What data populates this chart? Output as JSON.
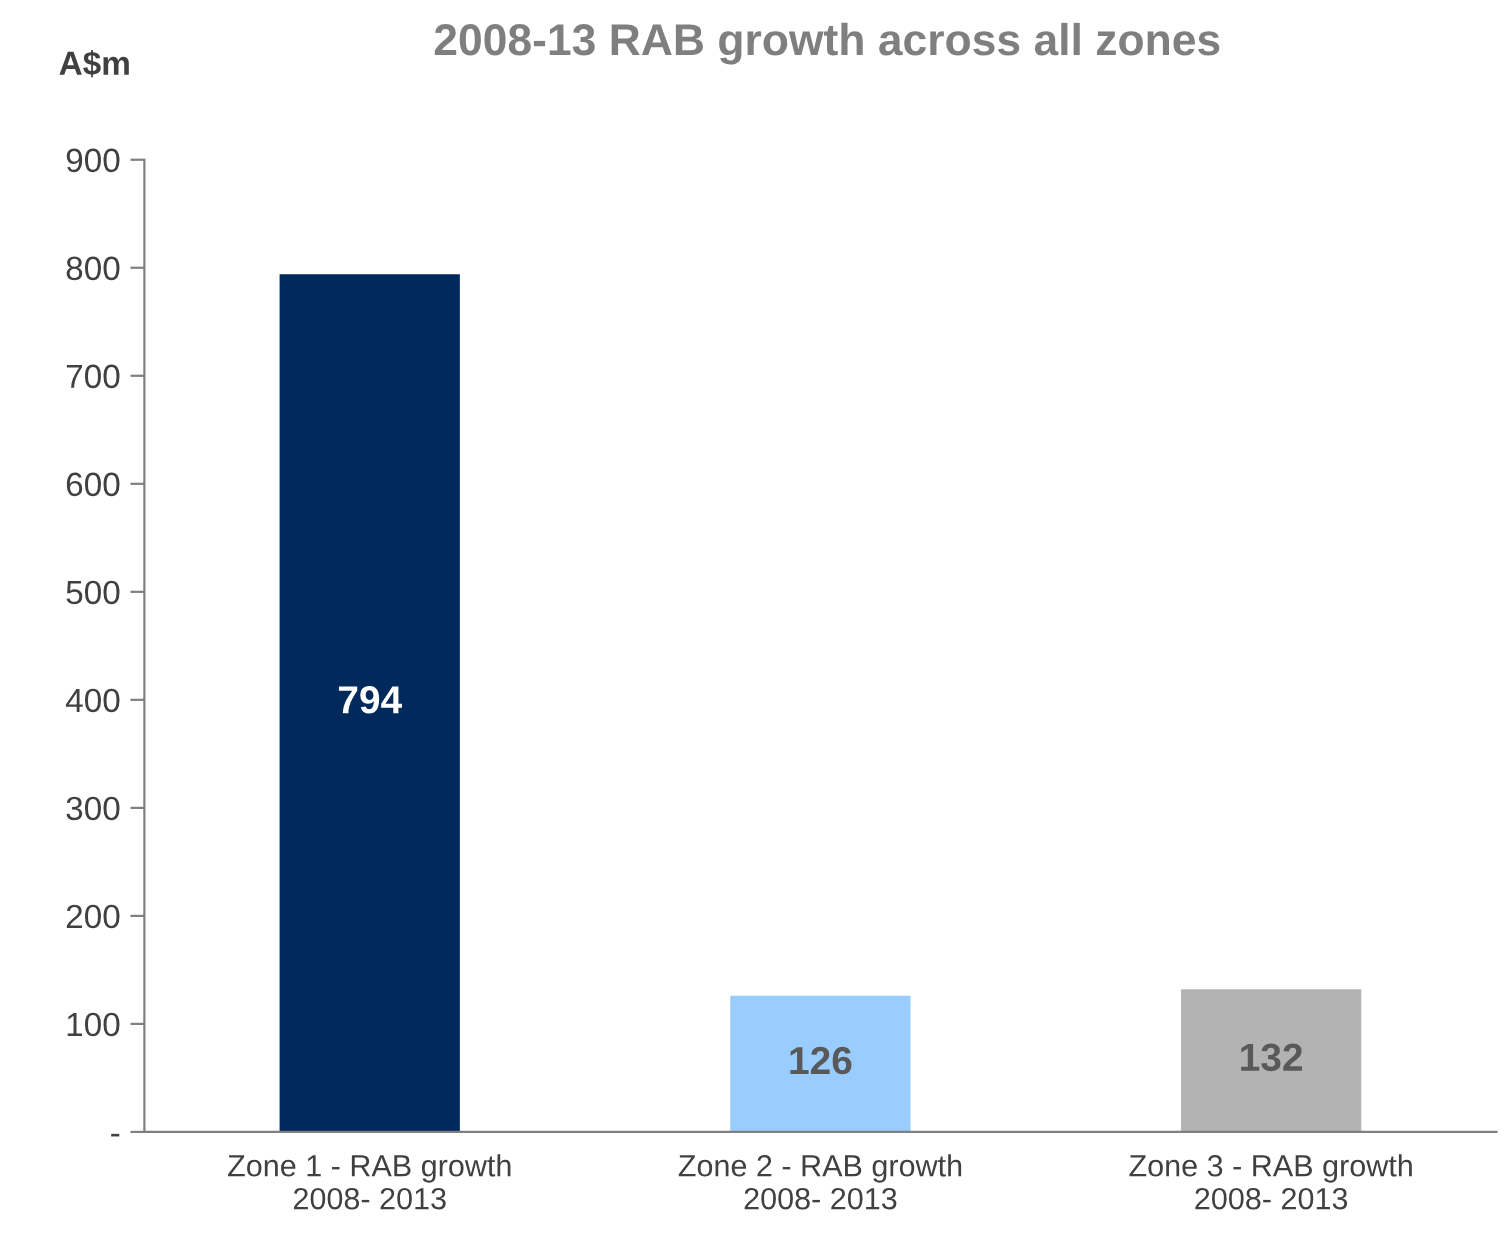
{
  "chart_data": {
    "type": "bar",
    "title": "2008-13 RAB growth across all zones",
    "ylabel": "A$m",
    "categories": [
      "Zone 1 - RAB growth\n2008- 2013",
      "Zone 2 - RAB growth\n2008- 2013",
      "Zone 3 - RAB growth\n2008- 2013"
    ],
    "values": [
      794,
      126,
      132
    ],
    "colors": [
      "#002a5c",
      "#99ccff",
      "#b3b3b3"
    ],
    "ylim": [
      0,
      900
    ],
    "yticks": [
      {
        "value": 0,
        "label": "-"
      },
      100,
      200,
      300,
      400,
      500,
      600,
      700,
      800,
      900
    ],
    "data_labels": true,
    "grid": false,
    "legend": false
  }
}
